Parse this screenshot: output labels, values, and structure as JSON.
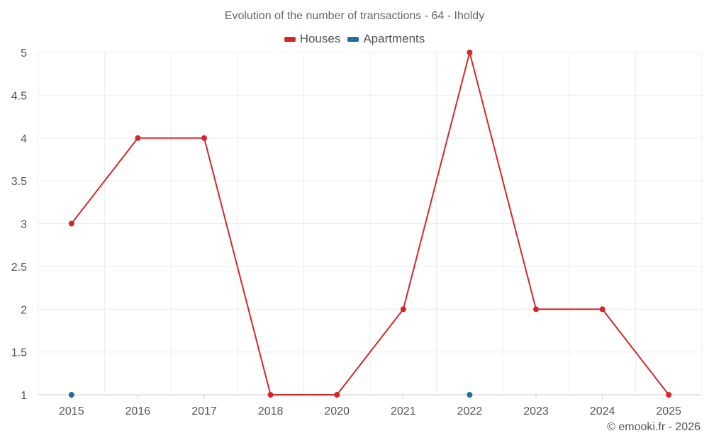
{
  "chart_data": {
    "type": "line",
    "title": "Evolution of the number of transactions - 64 - Iholdy",
    "categories": [
      "2015",
      "2016",
      "2017",
      "2018",
      "2020",
      "2021",
      "2022",
      "2023",
      "2024",
      "2025"
    ],
    "series": [
      {
        "name": "Houses",
        "color": "#d62728",
        "values": [
          3,
          4,
          4,
          1,
          1,
          2,
          5,
          2,
          2,
          1
        ]
      },
      {
        "name": "Apartments",
        "color": "#1f6fa3",
        "values": [
          1,
          null,
          null,
          null,
          null,
          null,
          1,
          null,
          null,
          null
        ]
      }
    ],
    "ylim": [
      1,
      5
    ],
    "yticks": [
      "1",
      "1.5",
      "2",
      "2.5",
      "3",
      "3.5",
      "4",
      "4.5",
      "5"
    ],
    "grid": true,
    "legend": "top-center"
  },
  "credit": "© emooki.fr - 2026"
}
